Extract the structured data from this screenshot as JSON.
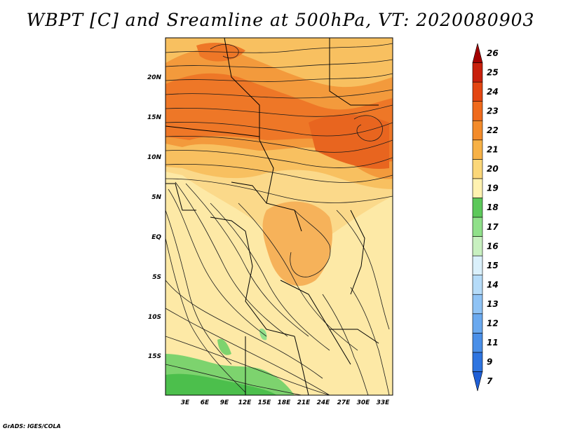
{
  "title": "WBPT [C] and Sreamline at 500hPa, VT: 2020080903",
  "credit": "GrADS: IGES/COLA",
  "map": {
    "lat_labels": [
      "20N",
      "15N",
      "10N",
      "5N",
      "EQ",
      "5S",
      "10S",
      "15S"
    ],
    "lon_labels": [
      "3E",
      "6E",
      "9E",
      "12E",
      "15E",
      "18E",
      "21E",
      "24E",
      "27E",
      "30E",
      "33E"
    ]
  },
  "colorbar": {
    "labels": [
      "7",
      "9",
      "11",
      "12",
      "13",
      "14",
      "15",
      "16",
      "17",
      "18",
      "19",
      "20",
      "21",
      "22",
      "23",
      "24",
      "25",
      "26"
    ],
    "colors": [
      "#1f5fd6",
      "#2e74e0",
      "#4a8fe8",
      "#6aa9ef",
      "#8fc3f5",
      "#b5dbf8",
      "#daf0fb",
      "#c8f0c0",
      "#90e08a",
      "#5cc85a",
      "#fff2b0",
      "#fbd779",
      "#f7b146",
      "#f38b2a",
      "#ef6a1c",
      "#e34612",
      "#c8200c",
      "#a20000"
    ]
  }
}
